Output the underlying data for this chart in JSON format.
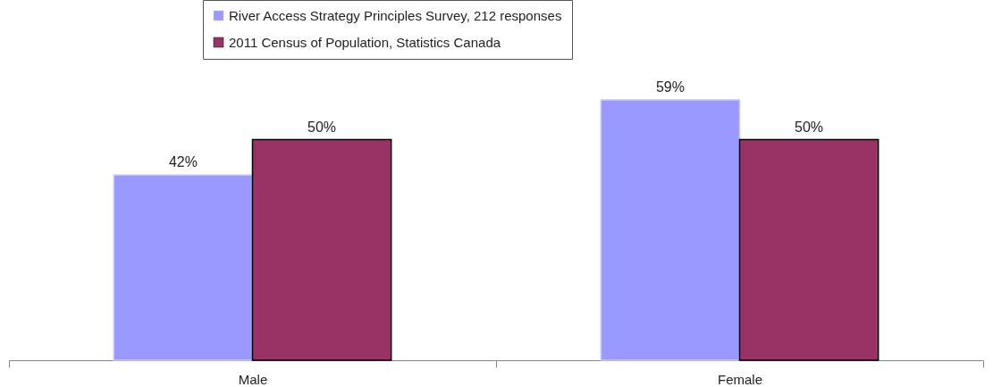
{
  "chart_data": {
    "type": "bar",
    "categories": [
      "Male",
      "Female"
    ],
    "series": [
      {
        "name": "River Access Strategy Principles Survey, 212 responses",
        "color": "#9999ff",
        "values": [
          42,
          59
        ],
        "value_labels": [
          "42%",
          "59%"
        ]
      },
      {
        "name": "2011 Census of Population, Statistics Canada",
        "color": "#993366",
        "values": [
          50,
          50
        ],
        "value_labels": [
          "50%",
          "50%"
        ]
      }
    ],
    "tick_labels": "x",
    "legend": "top"
  }
}
